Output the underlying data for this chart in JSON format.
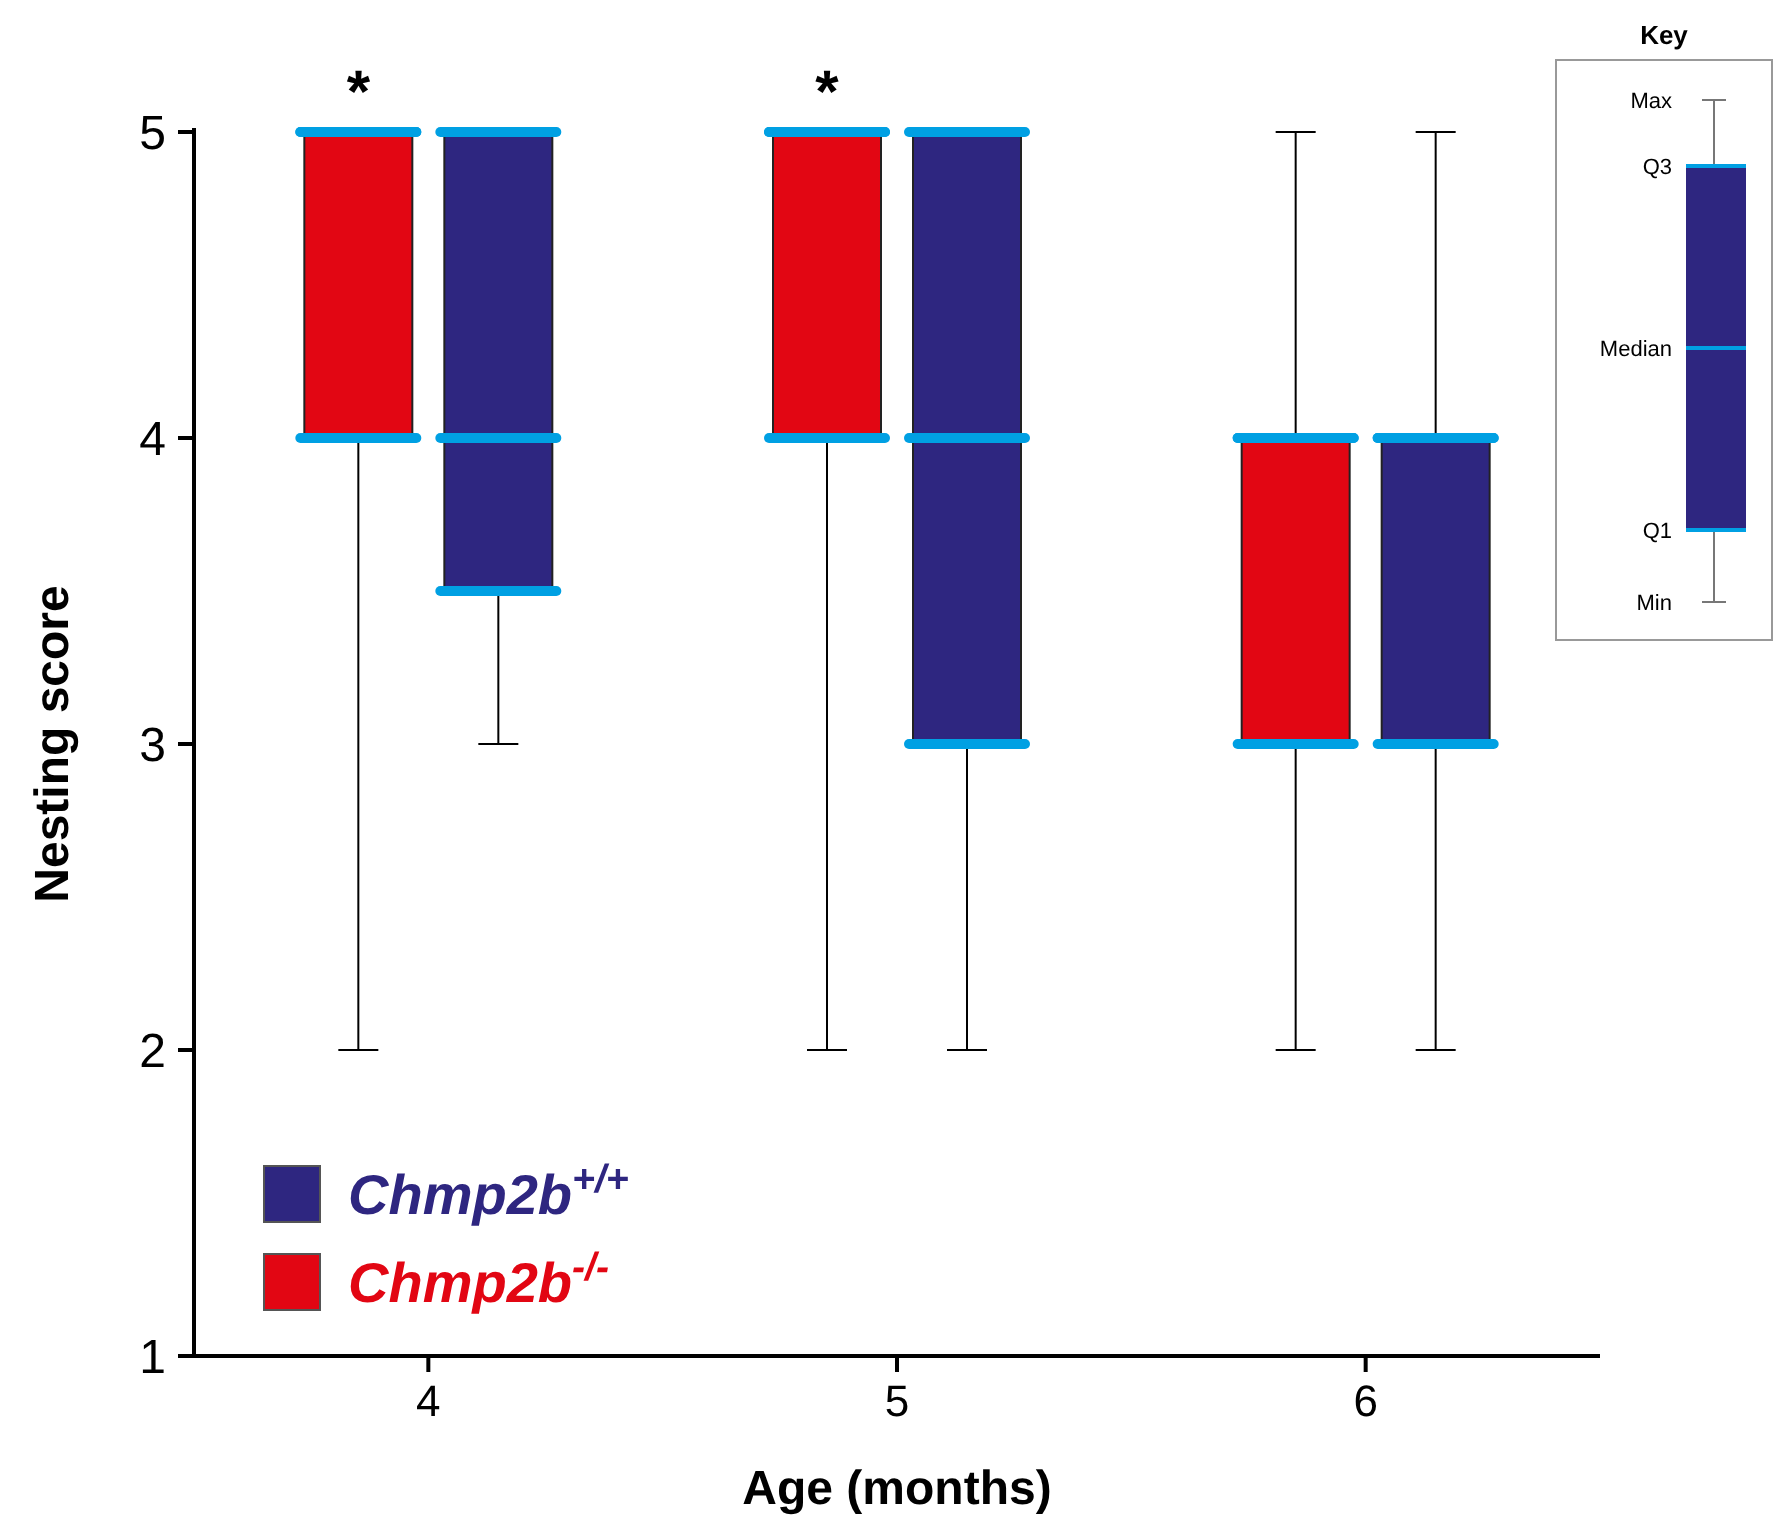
{
  "chart_data": {
    "type": "box",
    "xlabel": "Age (months)",
    "ylabel": "Nesting score",
    "categories": [
      "4",
      "5",
      "6"
    ],
    "ylim": [
      1,
      5
    ],
    "yticks": [
      1,
      2,
      3,
      4,
      5
    ],
    "legend": "bottom left",
    "series": [
      {
        "name": "Chmp2b$^{-/-}$",
        "color": "#e20613",
        "boxes": [
          {
            "low": 2,
            "q1": 4,
            "median": 5,
            "q3": 5,
            "high": 5
          },
          {
            "low": 2,
            "q1": 4,
            "median": 5,
            "q3": 5,
            "high": 5
          },
          {
            "low": 2,
            "q1": 3,
            "median": 4,
            "q3": 4,
            "high": 5
          }
        ]
      },
      {
        "name": "Chmp2b$^{+/+}$",
        "color": "#2e2680",
        "boxes": [
          {
            "low": 3,
            "q1": 3.5,
            "median": 4,
            "q3": 5,
            "high": 5
          },
          {
            "low": 2,
            "q1": 3,
            "median": 4,
            "q3": 5,
            "high": 5
          },
          {
            "low": 2,
            "q1": 3,
            "median": 4,
            "q3": 4,
            "high": 5
          }
        ]
      }
    ],
    "annotations": [
      "*",
      "*",
      "Key",
      "Max",
      "Q3",
      "Median",
      "Q1",
      "Min"
    ]
  }
}
